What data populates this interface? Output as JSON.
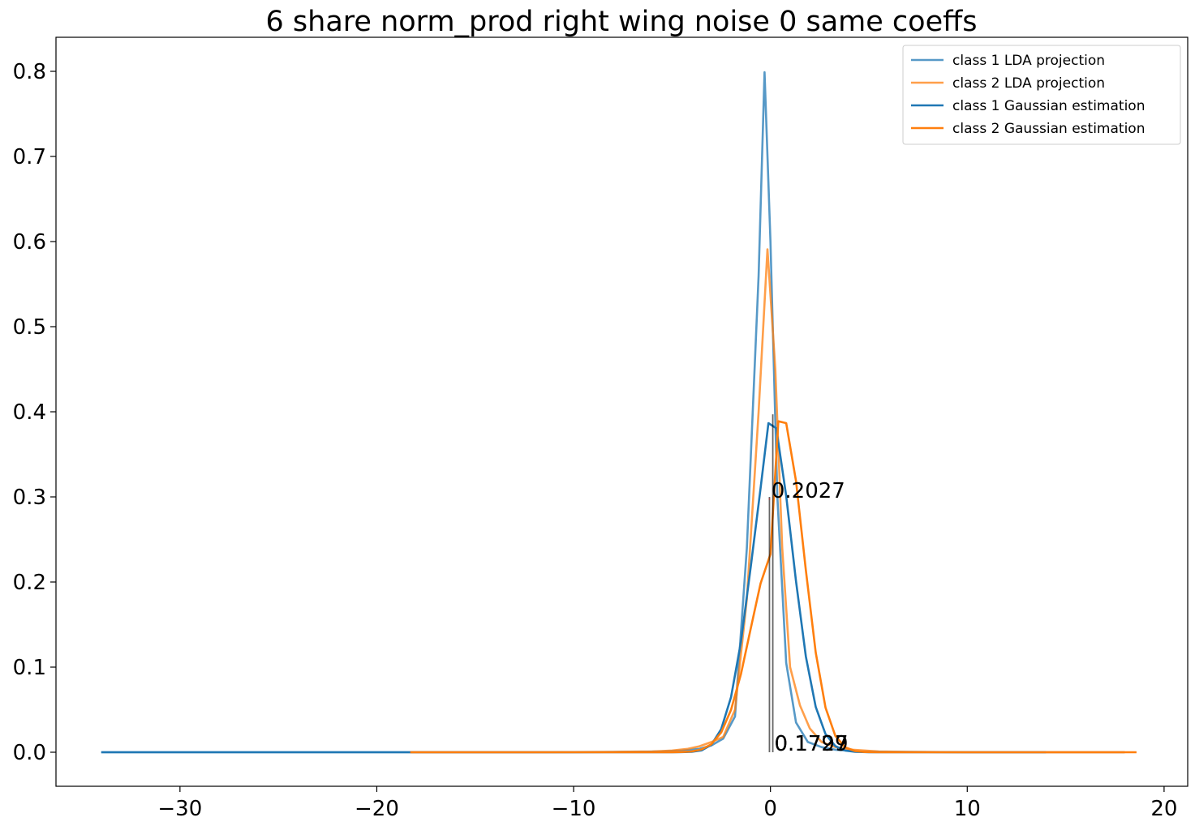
{
  "chart_data": {
    "type": "line",
    "title": "6 share norm_prod right wing noise 0 same coeffs",
    "xlabel": "",
    "ylabel": "",
    "xlim": [
      -36.3,
      21.2
    ],
    "ylim": [
      -0.04,
      0.84
    ],
    "xticks": [
      -30,
      -20,
      -10,
      0,
      10,
      20
    ],
    "xtick_labels": [
      "−30",
      "−20",
      "−10",
      "0",
      "10",
      "20"
    ],
    "yticks": [
      0.0,
      0.1,
      0.2,
      0.3,
      0.4,
      0.5,
      0.6,
      0.7,
      0.8
    ],
    "ytick_labels": [
      "0.0",
      "0.1",
      "0.2",
      "0.3",
      "0.4",
      "0.5",
      "0.6",
      "0.7",
      "0.8"
    ],
    "grid": false,
    "legend_position": "top-right",
    "series": [
      {
        "name": "class 1 LDA projection",
        "color": "#1f77b4",
        "opacity": 0.75,
        "x": [
          -34,
          -25,
          -18,
          -10,
          -7,
          -5.5,
          -4.5,
          -3.6,
          -3.0,
          -2.4,
          -1.8,
          -1.2,
          -0.6,
          -0.3,
          0.0,
          0.35,
          0.8,
          1.3,
          1.9,
          2.6,
          3.3,
          4.5,
          6,
          10,
          15,
          18
        ],
        "y": [
          0.0,
          0.0,
          0.0,
          0.0,
          0.0005,
          0.001,
          0.002,
          0.004,
          0.008,
          0.016,
          0.042,
          0.24,
          0.56,
          0.799,
          0.6,
          0.3,
          0.105,
          0.035,
          0.012,
          0.006,
          0.003,
          0.001,
          0.0005,
          0.0,
          0.0,
          0.0
        ]
      },
      {
        "name": "class 2 LDA projection",
        "color": "#ff7f0e",
        "opacity": 0.75,
        "x": [
          -18.3,
          -12,
          -8,
          -6,
          -5,
          -4.2,
          -3.6,
          -3.0,
          -2.4,
          -1.8,
          -1.2,
          -0.6,
          -0.15,
          0.25,
          0.6,
          1.0,
          1.5,
          2.0,
          2.6,
          3.3,
          4.2,
          5.5,
          7,
          10,
          14,
          18
        ],
        "y": [
          0.0,
          0.0,
          0.0005,
          0.001,
          0.002,
          0.004,
          0.007,
          0.012,
          0.018,
          0.05,
          0.18,
          0.4,
          0.591,
          0.45,
          0.24,
          0.1,
          0.055,
          0.028,
          0.012,
          0.006,
          0.003,
          0.001,
          0.0005,
          0.0,
          0.0,
          0.0
        ]
      },
      {
        "name": "class 1 Gaussian estimation",
        "color": "#1f77b4",
        "opacity": 1.0,
        "x": [
          -34,
          -30,
          -25,
          -20,
          -15,
          -10,
          -8,
          -6,
          -5,
          -4.5,
          -4,
          -3.5,
          -3,
          -2.5,
          -2,
          -1.5,
          -1,
          -0.5,
          -0.1,
          0.3,
          0.8,
          1.3,
          1.8,
          2.3,
          2.8,
          3.3,
          3.8,
          4.3,
          5,
          6,
          8,
          10,
          14
        ],
        "y": [
          0,
          0,
          0,
          0,
          0,
          0,
          0,
          0,
          1.5e-05,
          0.00016,
          0.00044,
          0.0022,
          0.0088,
          0.0272,
          0.0648,
          0.1295,
          0.2179,
          0.3101,
          0.3867,
          0.3807,
          0.3011,
          0.2009,
          0.1127,
          0.0532,
          0.0212,
          0.0071,
          0.002,
          0.00047,
          0.0001,
          0,
          0,
          0,
          0
        ]
      },
      {
        "name": "class 2 Gaussian estimation",
        "color": "#ff7f0e",
        "opacity": 1.0,
        "x": [
          -18.3,
          -15,
          -10,
          -8,
          -6,
          -5,
          -4.5,
          -4,
          -3.5,
          -3,
          -2.5,
          -2,
          -1.5,
          -1,
          -0.5,
          0,
          0.4,
          0.8,
          1.3,
          1.8,
          2.3,
          2.8,
          3.3,
          3.8,
          4.3,
          4.8,
          5.5,
          7,
          10,
          14,
          18.6
        ],
        "y": [
          0,
          0,
          0,
          0,
          0,
          7e-05,
          0.0003,
          0.001,
          0.0033,
          0.0094,
          0.0232,
          0.0498,
          0.0917,
          0.1454,
          0.1983,
          0.2328,
          0.3889,
          0.3867,
          0.3186,
          0.2141,
          0.1171,
          0.0523,
          0.0191,
          0.0057,
          0.0014,
          0.0003,
          4e-05,
          0,
          0,
          0,
          0
        ]
      }
    ],
    "vertical_lines": [
      {
        "x": -0.05,
        "y0": 0.0,
        "y1": 0.3,
        "color": "#000000",
        "opacity": 0.6
      },
      {
        "x": 0.12,
        "y0": 0.0,
        "y1": 0.397,
        "color": "#000000",
        "opacity": 0.6
      },
      {
        "x": -0.05,
        "y0": 0.297,
        "y1": 0.298,
        "color": "#d62728",
        "opacity": 1.0
      }
    ],
    "annotations": [
      {
        "text": "0.2027",
        "x": 0.05,
        "y": 0.297
      },
      {
        "text": "0.1727",
        "x": 0.2,
        "y": 0.0
      },
      {
        "text": "0.1799",
        "x": 0.2,
        "y": 0.0
      }
    ]
  }
}
